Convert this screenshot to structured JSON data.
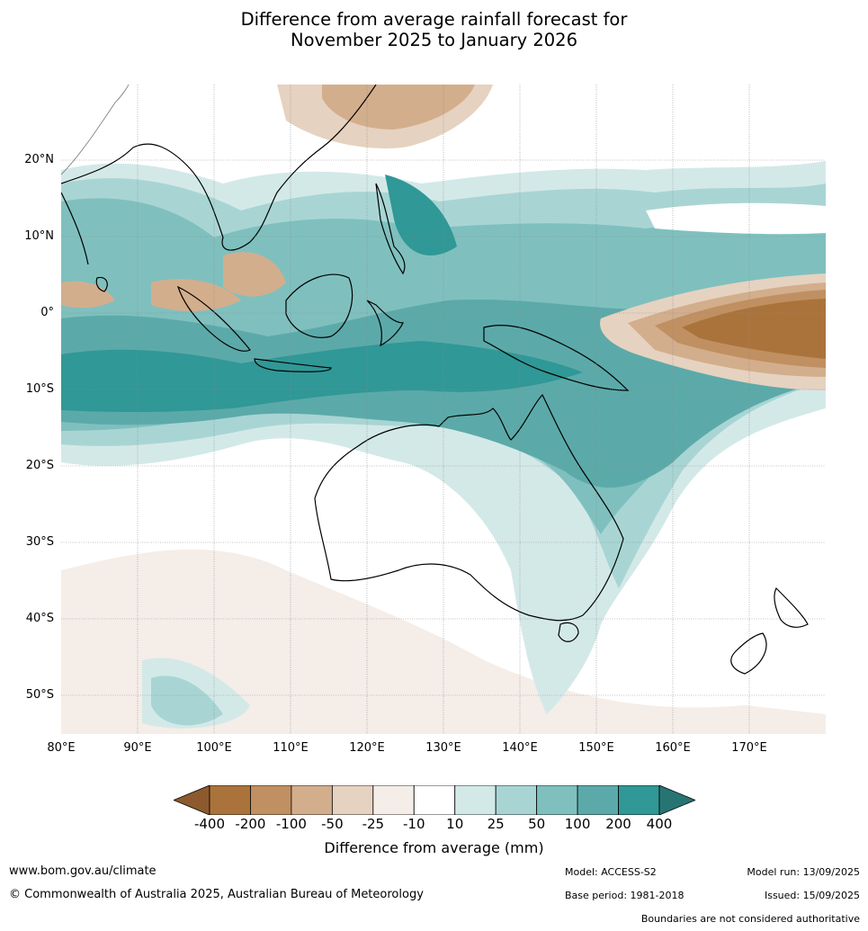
{
  "title": {
    "line1": "Difference from average rainfall forecast for",
    "line2": "November 2025 to January 2026"
  },
  "axes": {
    "lat_labels": [
      "20°N",
      "10°N",
      "0°",
      "10°S",
      "20°S",
      "30°S",
      "40°S",
      "50°S"
    ],
    "lon_labels": [
      "80°E",
      "90°E",
      "100°E",
      "110°E",
      "120°E",
      "130°E",
      "140°E",
      "150°E",
      "160°E",
      "170°E"
    ]
  },
  "colorbar": {
    "title": "Difference from average (mm)",
    "ticks": [
      "-400",
      "-200",
      "-100",
      "-50",
      "-25",
      "-10",
      "10",
      "25",
      "50",
      "100",
      "200",
      "400"
    ],
    "colors": [
      "#8c5a2e",
      "#ab733c",
      "#c09062",
      "#d3ae8c",
      "#e6d2c0",
      "#f5ede8",
      "#ffffff",
      "#d3e9e8",
      "#a8d5d4",
      "#7fc0be",
      "#5baaa9",
      "#309896",
      "#267573"
    ]
  },
  "footer": {
    "website": "www.bom.gov.au/climate",
    "copyright": "© Commonwealth of Australia 2025, Australian Bureau of Meteorology",
    "model": "Model: ACCESS-S2",
    "base_period": "Base period: 1981-2018",
    "model_run": "Model run: 13/09/2025",
    "issued": "Issued: 15/09/2025",
    "disclaimer": "Boundaries are not considered authoritative"
  }
}
